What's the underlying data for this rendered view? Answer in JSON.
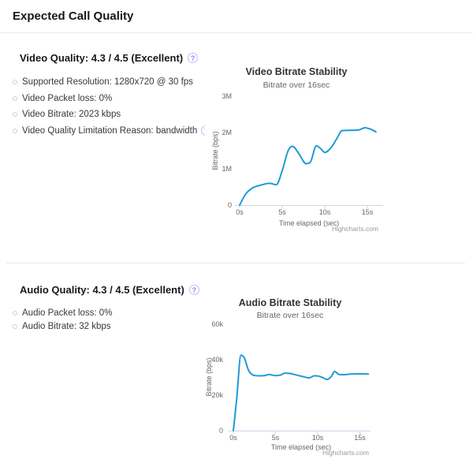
{
  "page": {
    "title": "Expected Call Quality"
  },
  "icons": {
    "help": "?"
  },
  "colors": {
    "accent_purple": "#9b7cf4",
    "line_blue": "#1f9ad6",
    "axis_line": "#ccd6eb",
    "chart_title": "#333333",
    "chart_muted": "#666666",
    "credit_gray": "#999999"
  },
  "video_section": {
    "heading": "Video Quality: 4.3 / 4.5 (Excellent)",
    "bullets": [
      {
        "text": "Supported Resolution: 1280x720 @ 30 fps",
        "help": false
      },
      {
        "text": "Video Packet loss: 0%",
        "help": false
      },
      {
        "text": "Video Bitrate: 2023 kbps",
        "help": false
      },
      {
        "text": "Video Quality Limitation Reason: bandwidth",
        "help": true
      }
    ]
  },
  "audio_section": {
    "heading": "Audio Quality: 4.3 / 4.5 (Excellent)",
    "bullets": [
      {
        "text": "Audio Packet loss: 0%",
        "help": false
      },
      {
        "text": "Audio Bitrate: 32 kbps",
        "help": false
      }
    ]
  },
  "chart_data": [
    {
      "id": "video",
      "type": "line",
      "title": "Video Bitrate Stability",
      "subtitle": "Bitrate over 16sec",
      "xlabel": "Time elapsed (sec)",
      "ylabel": "Bitrate (bps)",
      "credit": "Highcharts.com",
      "grid": false,
      "legend": "none",
      "xlim": [
        0,
        16.5
      ],
      "ylim": [
        0,
        3000000
      ],
      "x_ticks": [
        {
          "v": 0,
          "label": "0s"
        },
        {
          "v": 5,
          "label": "5s"
        },
        {
          "v": 10,
          "label": "10s"
        },
        {
          "v": 15,
          "label": "15s"
        }
      ],
      "y_ticks": [
        {
          "v": 0,
          "label": "0"
        },
        {
          "v": 1000000,
          "label": "1M"
        },
        {
          "v": 2000000,
          "label": "2M"
        },
        {
          "v": 3000000,
          "label": "3M"
        }
      ],
      "x": [
        0,
        0.7,
        1.5,
        2.5,
        3.5,
        4.3,
        5,
        5.7,
        6.2,
        7,
        7.8,
        8.3,
        9,
        9.5,
        10,
        10.8,
        11.5,
        12,
        13,
        14,
        14.7,
        15.4,
        16
      ],
      "values": [
        0,
        300000,
        470000,
        550000,
        600000,
        560000,
        950000,
        1500000,
        1620000,
        1400000,
        1140000,
        1180000,
        1630000,
        1560000,
        1450000,
        1600000,
        1870000,
        2050000,
        2060000,
        2070000,
        2130000,
        2090000,
        2020000
      ]
    },
    {
      "id": "audio",
      "type": "line",
      "title": "Audio Bitrate Stability",
      "subtitle": "Bitrate over 16sec",
      "xlabel": "Time elapsed (sec)",
      "ylabel": "Bitrate (bps)",
      "credit": "Highcharts.com",
      "grid": false,
      "legend": "none",
      "xlim": [
        0,
        16.5
      ],
      "ylim": [
        0,
        60000
      ],
      "x_ticks": [
        {
          "v": 0,
          "label": "0s"
        },
        {
          "v": 5,
          "label": "5s"
        },
        {
          "v": 10,
          "label": "10s"
        },
        {
          "v": 15,
          "label": "15s"
        }
      ],
      "y_ticks": [
        {
          "v": 0,
          "label": "0"
        },
        {
          "v": 20000,
          "label": "20k"
        },
        {
          "v": 40000,
          "label": "40k"
        },
        {
          "v": 60000,
          "label": "60k"
        }
      ],
      "x": [
        0,
        0.4,
        0.9,
        1.3,
        1.8,
        2.4,
        3,
        3.7,
        4.2,
        5,
        5.6,
        6.1,
        6.8,
        7.5,
        8.2,
        9,
        9.6,
        10.1,
        10.6,
        11.1,
        11.6,
        12,
        12.5,
        13,
        14,
        15,
        16
      ],
      "values": [
        0,
        18000,
        42500,
        41000,
        34000,
        31200,
        30900,
        31000,
        31600,
        31000,
        31300,
        32400,
        32100,
        31300,
        30500,
        29700,
        30900,
        30700,
        29900,
        28800,
        30400,
        33400,
        31700,
        31500,
        31900,
        32000,
        31900
      ]
    }
  ]
}
